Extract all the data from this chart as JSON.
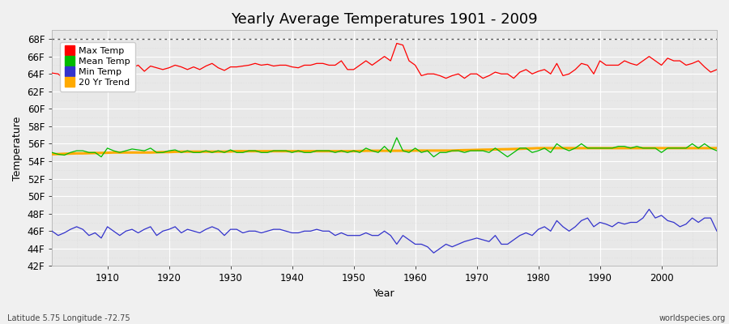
{
  "title": "Yearly Average Temperatures 1901 - 2009",
  "xlabel": "Year",
  "ylabel": "Temperature",
  "bottom_left_label": "Latitude 5.75 Longitude -72.75",
  "bottom_right_label": "worldspecies.org",
  "years": [
    1901,
    1902,
    1903,
    1904,
    1905,
    1906,
    1907,
    1908,
    1909,
    1910,
    1911,
    1912,
    1913,
    1914,
    1915,
    1916,
    1917,
    1918,
    1919,
    1920,
    1921,
    1922,
    1923,
    1924,
    1925,
    1926,
    1927,
    1928,
    1929,
    1930,
    1931,
    1932,
    1933,
    1934,
    1935,
    1936,
    1937,
    1938,
    1939,
    1940,
    1941,
    1942,
    1943,
    1944,
    1945,
    1946,
    1947,
    1948,
    1949,
    1950,
    1951,
    1952,
    1953,
    1954,
    1955,
    1956,
    1957,
    1958,
    1959,
    1960,
    1961,
    1962,
    1963,
    1964,
    1965,
    1966,
    1967,
    1968,
    1969,
    1970,
    1971,
    1972,
    1973,
    1974,
    1975,
    1976,
    1977,
    1978,
    1979,
    1980,
    1981,
    1982,
    1983,
    1984,
    1985,
    1986,
    1987,
    1988,
    1989,
    1990,
    1991,
    1992,
    1993,
    1994,
    1995,
    1996,
    1997,
    1998,
    1999,
    2000,
    2001,
    2002,
    2003,
    2004,
    2005,
    2006,
    2007,
    2008,
    2009
  ],
  "max_temp": [
    64.1,
    64.0,
    63.4,
    63.5,
    63.6,
    64.5,
    63.5,
    63.9,
    63.2,
    64.9,
    64.4,
    63.6,
    64.2,
    64.7,
    65.0,
    64.3,
    64.9,
    64.7,
    64.5,
    64.7,
    65.0,
    64.8,
    64.5,
    64.8,
    64.5,
    64.9,
    65.2,
    64.7,
    64.4,
    64.8,
    64.8,
    64.9,
    65.0,
    65.2,
    65.0,
    65.1,
    64.9,
    65.0,
    65.0,
    64.8,
    64.7,
    65.0,
    65.0,
    65.2,
    65.2,
    65.0,
    65.0,
    65.5,
    64.5,
    64.5,
    65.0,
    65.5,
    65.0,
    65.5,
    66.0,
    65.5,
    67.5,
    67.3,
    65.5,
    65.0,
    63.8,
    64.0,
    64.0,
    63.8,
    63.5,
    63.8,
    64.0,
    63.5,
    64.0,
    64.0,
    63.5,
    63.8,
    64.2,
    64.0,
    64.0,
    63.5,
    64.2,
    64.5,
    64.0,
    64.3,
    64.5,
    64.0,
    65.2,
    63.8,
    64.0,
    64.5,
    65.2,
    65.0,
    64.0,
    65.5,
    65.0,
    65.0,
    65.0,
    65.5,
    65.2,
    65.0,
    65.5,
    66.0,
    65.5,
    65.0,
    65.8,
    65.5,
    65.5,
    65.0,
    65.2,
    65.5,
    64.8,
    64.2,
    64.5
  ],
  "mean_temp": [
    55.0,
    54.8,
    54.7,
    55.0,
    55.2,
    55.2,
    55.0,
    55.0,
    54.5,
    55.5,
    55.2,
    55.0,
    55.2,
    55.4,
    55.3,
    55.2,
    55.5,
    55.0,
    55.0,
    55.2,
    55.3,
    55.0,
    55.2,
    55.0,
    55.0,
    55.2,
    55.0,
    55.2,
    55.0,
    55.3,
    55.0,
    55.0,
    55.2,
    55.2,
    55.0,
    55.0,
    55.2,
    55.2,
    55.2,
    55.0,
    55.2,
    55.0,
    55.0,
    55.2,
    55.2,
    55.2,
    55.0,
    55.2,
    55.0,
    55.2,
    55.0,
    55.5,
    55.2,
    55.0,
    55.7,
    55.0,
    56.7,
    55.2,
    55.0,
    55.5,
    55.0,
    55.2,
    54.5,
    55.0,
    55.0,
    55.2,
    55.2,
    55.0,
    55.2,
    55.2,
    55.2,
    55.0,
    55.5,
    55.0,
    54.5,
    55.0,
    55.5,
    55.5,
    55.0,
    55.2,
    55.5,
    55.0,
    56.0,
    55.5,
    55.2,
    55.5,
    56.0,
    55.5,
    55.5,
    55.5,
    55.5,
    55.5,
    55.7,
    55.7,
    55.5,
    55.7,
    55.5,
    55.5,
    55.5,
    55.0,
    55.5,
    55.5,
    55.5,
    55.5,
    56.0,
    55.5,
    56.0,
    55.5,
    55.2
  ],
  "min_temp": [
    46.0,
    45.5,
    45.8,
    46.2,
    46.5,
    46.2,
    45.5,
    45.8,
    45.2,
    46.5,
    46.0,
    45.5,
    46.0,
    46.2,
    45.8,
    46.2,
    46.5,
    45.5,
    46.0,
    46.2,
    46.5,
    45.8,
    46.2,
    46.0,
    45.8,
    46.2,
    46.5,
    46.2,
    45.5,
    46.2,
    46.2,
    45.8,
    46.0,
    46.0,
    45.8,
    46.0,
    46.2,
    46.2,
    46.0,
    45.8,
    45.8,
    46.0,
    46.0,
    46.2,
    46.0,
    46.0,
    45.5,
    45.8,
    45.5,
    45.5,
    45.5,
    45.8,
    45.5,
    45.5,
    46.0,
    45.5,
    44.5,
    45.5,
    45.0,
    44.5,
    44.5,
    44.2,
    43.5,
    44.0,
    44.5,
    44.2,
    44.5,
    44.8,
    45.0,
    45.2,
    45.0,
    44.8,
    45.5,
    44.5,
    44.5,
    45.0,
    45.5,
    45.8,
    45.5,
    46.2,
    46.5,
    46.0,
    47.2,
    46.5,
    46.0,
    46.5,
    47.2,
    47.5,
    46.5,
    47.0,
    46.8,
    46.5,
    47.0,
    46.8,
    47.0,
    47.0,
    47.5,
    48.5,
    47.5,
    47.8,
    47.2,
    47.0,
    46.5,
    46.8,
    47.5,
    47.0,
    47.5,
    47.5,
    46.0
  ],
  "trend": [
    54.8,
    54.82,
    54.85,
    54.87,
    54.9,
    54.9,
    54.92,
    54.94,
    54.95,
    54.97,
    55.0,
    55.0,
    55.0,
    55.0,
    55.0,
    55.0,
    55.0,
    55.02,
    55.05,
    55.05,
    55.08,
    55.1,
    55.1,
    55.1,
    55.1,
    55.1,
    55.1,
    55.1,
    55.1,
    55.12,
    55.15,
    55.15,
    55.15,
    55.15,
    55.15,
    55.15,
    55.15,
    55.15,
    55.15,
    55.15,
    55.15,
    55.15,
    55.15,
    55.15,
    55.15,
    55.15,
    55.15,
    55.15,
    55.15,
    55.15,
    55.17,
    55.2,
    55.2,
    55.2,
    55.2,
    55.2,
    55.2,
    55.2,
    55.2,
    55.22,
    55.22,
    55.22,
    55.22,
    55.22,
    55.22,
    55.22,
    55.25,
    55.27,
    55.28,
    55.3,
    55.32,
    55.33,
    55.35,
    55.37,
    55.38,
    55.4,
    55.42,
    55.45,
    55.47,
    55.5,
    55.5,
    55.5,
    55.5,
    55.5,
    55.5,
    55.5,
    55.5,
    55.5,
    55.5,
    55.5,
    55.5,
    55.5,
    55.5,
    55.5,
    55.5,
    55.5,
    55.5,
    55.5,
    55.5,
    55.5,
    55.5,
    55.5,
    55.5,
    55.5,
    55.5,
    55.5,
    55.5,
    55.5,
    55.5
  ],
  "max_color": "#ff0000",
  "mean_color": "#00bb00",
  "min_color": "#3333cc",
  "trend_color": "#ffaa00",
  "bg_color": "#f0f0f0",
  "plot_bg_color": "#e8e8e8",
  "grid_major_color": "#ffffff",
  "grid_minor_color": "#d8d8d8",
  "dotted_line_y": 68,
  "ylim": [
    42,
    69
  ],
  "yticks": [
    42,
    44,
    46,
    48,
    50,
    52,
    54,
    56,
    58,
    60,
    62,
    64,
    66,
    68
  ],
  "ytick_labels": [
    "42F",
    "44F",
    "46F",
    "48F",
    "50F",
    "52F",
    "54F",
    "56F",
    "58F",
    "60F",
    "62F",
    "64F",
    "66F",
    "68F"
  ],
  "xlim": [
    1901,
    2009
  ],
  "xticks": [
    1910,
    1920,
    1930,
    1940,
    1950,
    1960,
    1970,
    1980,
    1990,
    2000
  ],
  "title_fontsize": 13,
  "axis_label_fontsize": 9,
  "tick_fontsize": 8.5
}
